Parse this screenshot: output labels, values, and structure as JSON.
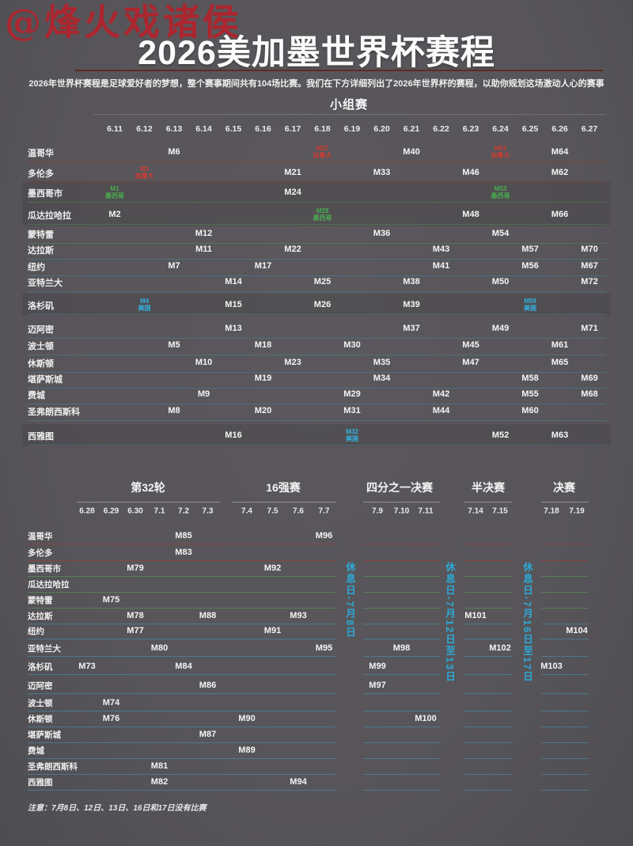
{
  "watermark": "@烽火戏诸侯",
  "title": "2026美加墨世界杯赛程",
  "subtitle": "2026年世界杯赛程是足球爱好者的梦想，整个赛事期间共有104场比赛。我们在下方详细列出了2026年世界杯的赛程，以助你规划这场激动人心的赛事",
  "note": "注意：7月8日、12日、13日、16日和17日没有比赛",
  "colors": {
    "canada": "#d23a32",
    "mexico": "#4aab4f",
    "usa": "#33b1e0",
    "title_rule": "#5e2a24",
    "rest_label": "#2da9d8"
  },
  "chart_data": {
    "type": "table",
    "title": "2026美加墨世界杯赛程",
    "group_stage": {
      "heading": "小组赛",
      "dates": [
        "6.11",
        "6.12",
        "6.13",
        "6.14",
        "6.15",
        "6.16",
        "6.17",
        "6.18",
        "6.19",
        "6.20",
        "6.21",
        "6.22",
        "6.23",
        "6.24",
        "6.25",
        "6.26",
        "6.27"
      ],
      "rows": [
        {
          "city": "温哥华",
          "country": "canada",
          "highlight": false,
          "matches": [
            {
              "label": "M6",
              "date": "6.13"
            },
            {
              "label": "M27",
              "date": "6.18",
              "tag": "加拿大"
            },
            {
              "label": "M40",
              "date": "6.21"
            },
            {
              "label": "M51",
              "date": "6.24",
              "tag": "加拿大"
            },
            {
              "label": "M64",
              "date": "6.26"
            }
          ]
        },
        {
          "city": "多伦多",
          "country": "canada",
          "highlight": false,
          "matches": [
            {
              "label": "M3",
              "date": "6.12",
              "tag": "加拿大"
            },
            {
              "label": "M21",
              "date": "6.17"
            },
            {
              "label": "M33",
              "date": "6.20"
            },
            {
              "label": "M46",
              "date": "6.23"
            },
            {
              "label": "M62",
              "date": "6.26"
            }
          ]
        },
        {
          "city": "墨西哥市",
          "country": "mexico",
          "highlight": true,
          "matches": [
            {
              "label": "M1",
              "date": "6.11",
              "tag": "墨西哥"
            },
            {
              "label": "M24",
              "date": "6.17"
            },
            {
              "label": "M53",
              "date": "6.24",
              "tag": "墨西哥"
            }
          ]
        },
        {
          "city": "瓜达拉哈拉",
          "country": "mexico",
          "highlight": true,
          "matches": [
            {
              "label": "M2",
              "date": "6.11"
            },
            {
              "label": "M28",
              "date": "6.18",
              "tag": "墨西哥"
            },
            {
              "label": "M48",
              "date": "6.23"
            },
            {
              "label": "M66",
              "date": "6.26"
            }
          ]
        },
        {
          "city": "蒙特雷",
          "country": "mexico",
          "highlight": false,
          "matches": [
            {
              "label": "M12",
              "date": "6.14"
            },
            {
              "label": "M36",
              "date": "6.20"
            },
            {
              "label": "M54",
              "date": "6.24"
            }
          ]
        },
        {
          "city": "达拉斯",
          "country": "usa",
          "highlight": false,
          "matches": [
            {
              "label": "M11",
              "date": "6.14"
            },
            {
              "label": "M22",
              "date": "6.17"
            },
            {
              "label": "M43",
              "date": "6.22"
            },
            {
              "label": "M57",
              "date": "6.25"
            },
            {
              "label": "M70",
              "date": "6.27"
            }
          ]
        },
        {
          "city": "纽约",
          "country": "usa",
          "highlight": false,
          "matches": [
            {
              "label": "M7",
              "date": "6.13"
            },
            {
              "label": "M17",
              "date": "6.16"
            },
            {
              "label": "M41",
              "date": "6.22"
            },
            {
              "label": "M56",
              "date": "6.25"
            },
            {
              "label": "M67",
              "date": "6.27"
            }
          ]
        },
        {
          "city": "亚特兰大",
          "country": "usa",
          "highlight": false,
          "matches": [
            {
              "label": "M14",
              "date": "6.15"
            },
            {
              "label": "M25",
              "date": "6.18"
            },
            {
              "label": "M38",
              "date": "6.21"
            },
            {
              "label": "M50",
              "date": "6.24"
            },
            {
              "label": "M72",
              "date": "6.27"
            }
          ]
        },
        {
          "city": "洛杉矶",
          "country": "usa",
          "highlight": true,
          "matches": [
            {
              "label": "M4",
              "date": "6.12",
              "tag": "美国"
            },
            {
              "label": "M15",
              "date": "6.15"
            },
            {
              "label": "M26",
              "date": "6.18"
            },
            {
              "label": "M39",
              "date": "6.21"
            },
            {
              "label": "M59",
              "date": "6.25",
              "tag": "美国"
            }
          ]
        },
        {
          "city": "迈阿密",
          "country": "usa",
          "highlight": false,
          "matches": [
            {
              "label": "M13",
              "date": "6.15"
            },
            {
              "label": "M37",
              "date": "6.21"
            },
            {
              "label": "M49",
              "date": "6.24"
            },
            {
              "label": "M71",
              "date": "6.27"
            }
          ]
        },
        {
          "city": "波士顿",
          "country": "usa",
          "highlight": false,
          "matches": [
            {
              "label": "M5",
              "date": "6.13"
            },
            {
              "label": "M18",
              "date": "6.16"
            },
            {
              "label": "M30",
              "date": "6.19"
            },
            {
              "label": "M45",
              "date": "6.23"
            },
            {
              "label": "M61",
              "date": "6.26"
            }
          ]
        },
        {
          "city": "休斯顿",
          "country": "usa",
          "highlight": false,
          "matches": [
            {
              "label": "M10",
              "date": "6.14"
            },
            {
              "label": "M23",
              "date": "6.17"
            },
            {
              "label": "M35",
              "date": "6.20"
            },
            {
              "label": "M47",
              "date": "6.23"
            },
            {
              "label": "M65",
              "date": "6.26"
            }
          ]
        },
        {
          "city": "堪萨斯城",
          "country": "usa",
          "highlight": false,
          "matches": [
            {
              "label": "M19",
              "date": "6.16"
            },
            {
              "label": "M34",
              "date": "6.20"
            },
            {
              "label": "M58",
              "date": "6.25"
            },
            {
              "label": "M69",
              "date": "6.27"
            }
          ]
        },
        {
          "city": "费城",
          "country": "usa",
          "highlight": false,
          "matches": [
            {
              "label": "M9",
              "date": "6.14"
            },
            {
              "label": "M29",
              "date": "6.19"
            },
            {
              "label": "M42",
              "date": "6.22"
            },
            {
              "label": "M55",
              "date": "6.25"
            },
            {
              "label": "M68",
              "date": "6.27"
            }
          ]
        },
        {
          "city": "圣弗朗西斯科",
          "country": "usa",
          "highlight": false,
          "matches": [
            {
              "label": "M8",
              "date": "6.13"
            },
            {
              "label": "M20",
              "date": "6.16"
            },
            {
              "label": "M31",
              "date": "6.19"
            },
            {
              "label": "M44",
              "date": "6.22"
            },
            {
              "label": "M60",
              "date": "6.25"
            }
          ]
        },
        {
          "city": "西雅图",
          "country": "usa",
          "highlight": true,
          "matches": [
            {
              "label": "M16",
              "date": "6.15"
            },
            {
              "label": "M32",
              "date": "6.19",
              "tag": "美国"
            },
            {
              "label": "M52",
              "date": "6.24"
            },
            {
              "label": "M63",
              "date": "6.26"
            }
          ]
        }
      ]
    },
    "knockout": {
      "stages": [
        {
          "title": "第32轮",
          "dates": [
            "6.28",
            "6.29",
            "6.30",
            "7.1",
            "7.2",
            "7.3"
          ]
        },
        {
          "title": "16强赛",
          "dates": [
            "7.4",
            "7.5",
            "7.6",
            "7.7"
          ]
        },
        {
          "title": "四分之一决赛",
          "dates": [
            "7.9",
            "7.10",
            "7.11"
          ]
        },
        {
          "title": "半决赛",
          "dates": [
            "7.14",
            "7.15"
          ]
        },
        {
          "title": "决赛",
          "dates": [
            "7.18",
            "7.19"
          ]
        }
      ],
      "rest_days": [
        "休息日-7月8日",
        "休息日-7月12日至13日",
        "休息日-7月16日至17日"
      ],
      "rows": [
        {
          "city": "温哥华",
          "country": "canada",
          "matches": [
            {
              "label": "M85",
              "date": "7.2"
            },
            {
              "label": "M96",
              "date": "7.7"
            }
          ]
        },
        {
          "city": "多伦多",
          "country": "canada",
          "matches": [
            {
              "label": "M83",
              "date": "7.2"
            }
          ]
        },
        {
          "city": "墨西哥市",
          "country": "mexico",
          "matches": [
            {
              "label": "M79",
              "date": "6.30"
            },
            {
              "label": "M92",
              "date": "7.5"
            }
          ]
        },
        {
          "city": "瓜达拉哈拉",
          "country": "mexico",
          "matches": []
        },
        {
          "city": "蒙特雷",
          "country": "mexico",
          "matches": [
            {
              "label": "M75",
              "date": "6.29"
            }
          ]
        },
        {
          "city": "达拉斯",
          "country": "usa",
          "matches": [
            {
              "label": "M78",
              "date": "6.30"
            },
            {
              "label": "M88",
              "date": "7.3"
            },
            {
              "label": "M93",
              "date": "7.6"
            },
            {
              "label": "M101",
              "date": "7.14"
            }
          ]
        },
        {
          "city": "纽约",
          "country": "usa",
          "matches": [
            {
              "label": "M77",
              "date": "6.30"
            },
            {
              "label": "M91",
              "date": "7.5"
            },
            {
              "label": "M104",
              "date": "7.19"
            }
          ]
        },
        {
          "city": "亚特兰大",
          "country": "usa",
          "matches": [
            {
              "label": "M80",
              "date": "7.1"
            },
            {
              "label": "M95",
              "date": "7.7"
            },
            {
              "label": "M98",
              "date": "7.10"
            },
            {
              "label": "M102",
              "date": "7.15"
            }
          ]
        },
        {
          "city": "洛杉矶",
          "country": "usa",
          "matches": [
            {
              "label": "M73",
              "date": "6.28"
            },
            {
              "label": "M84",
              "date": "7.2"
            },
            {
              "label": "M99",
              "date": "7.9"
            },
            {
              "label": "M103",
              "date": "7.18"
            }
          ]
        },
        {
          "city": "迈阿密",
          "country": "usa",
          "matches": [
            {
              "label": "M86",
              "date": "7.3"
            },
            {
              "label": "M97",
              "date": "7.9"
            }
          ]
        },
        {
          "city": "波士顿",
          "country": "usa",
          "matches": [
            {
              "label": "M74",
              "date": "6.29"
            }
          ]
        },
        {
          "city": "休斯顿",
          "country": "usa",
          "matches": [
            {
              "label": "M76",
              "date": "6.29"
            },
            {
              "label": "M90",
              "date": "7.4"
            },
            {
              "label": "M100",
              "date": "7.11"
            }
          ]
        },
        {
          "city": "堪萨斯城",
          "country": "usa",
          "matches": [
            {
              "label": "M87",
              "date": "7.3"
            }
          ]
        },
        {
          "city": "费城",
          "country": "usa",
          "matches": [
            {
              "label": "M89",
              "date": "7.4"
            }
          ]
        },
        {
          "city": "圣弗朗西斯科",
          "country": "usa",
          "matches": [
            {
              "label": "M81",
              "date": "7.1"
            }
          ]
        },
        {
          "city": "西雅图",
          "country": "usa",
          "matches": [
            {
              "label": "M82",
              "date": "7.1"
            },
            {
              "label": "M94",
              "date": "7.6"
            }
          ]
        }
      ]
    }
  }
}
